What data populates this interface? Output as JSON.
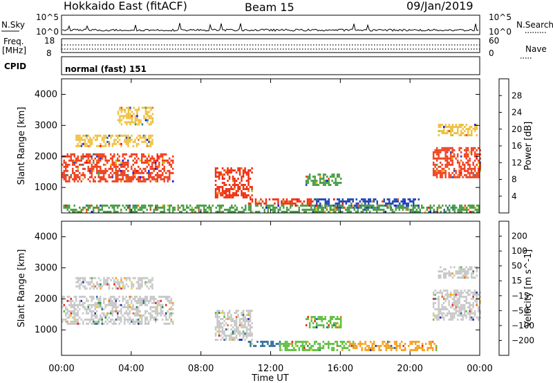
{
  "header": {
    "radar": "Hokkaido East (fitACF)",
    "beam": "Beam 15",
    "date": "09/Jan/2019"
  },
  "status_panels": {
    "nsky_label": "N.Sky",
    "nsky_ticks": [
      "10^5",
      "10^0"
    ],
    "nsearch_label": "N.Search",
    "nsearch_ticks": [
      "10^5",
      "10^0"
    ],
    "freq_label_1": "Freq.",
    "freq_label_2": "[MHz]",
    "freq_ticks": [
      "18",
      "8"
    ],
    "nave_label": "Nave",
    "nave_ticks": [
      "60",
      "0"
    ],
    "cpid_label": "CPID",
    "cpid_value": "normal (fast) 151"
  },
  "x_axis": {
    "label": "Time UT",
    "ticks": [
      "00:00",
      "04:00",
      "08:00",
      "12:00",
      "16:00",
      "20:00",
      "00:00"
    ]
  },
  "chart_data": [
    {
      "type": "heatmap",
      "quantity": "power",
      "ylabel": "Slant Range [km]",
      "y_ticks": [
        "1000",
        "2000",
        "3000",
        "4000"
      ],
      "ylim": [
        180,
        4500
      ],
      "xlim_hours": [
        0,
        24
      ],
      "colorbar": {
        "label": "Power [dB]",
        "ticks": [
          "4",
          "8",
          "12",
          "16",
          "20",
          "24",
          "28"
        ],
        "colors": [
          "#0a14ff",
          "#2547b8",
          "#2e7c7c",
          "#4a9f46",
          "#a9c92f",
          "#f0c020",
          "#f5a020",
          "#f07a10",
          "#f04a10",
          "#ff0000"
        ]
      },
      "regions": [
        {
          "t": [
            0,
            6.4
          ],
          "r": [
            1200,
            2100
          ],
          "value": "high",
          "color": "#f04020"
        },
        {
          "t": [
            0.8,
            5.2
          ],
          "r": [
            2350,
            2700
          ],
          "value": "medium",
          "color": "#f0c040"
        },
        {
          "t": [
            3.2,
            5.2
          ],
          "r": [
            3050,
            3600
          ],
          "value": "medium",
          "color": "#f0c040"
        },
        {
          "t": [
            8.8,
            10.9
          ],
          "r": [
            650,
            1650
          ],
          "value": "high",
          "color": "#f03010"
        },
        {
          "t": [
            10.7,
            14.5
          ],
          "r": [
            450,
            650
          ],
          "value": "high",
          "color": "#f03010"
        },
        {
          "t": [
            14.5,
            20.5
          ],
          "r": [
            350,
            650
          ],
          "value": "low",
          "color": "#2547b8"
        },
        {
          "t": [
            14.0,
            16.0
          ],
          "r": [
            1100,
            1450
          ],
          "value": "medium",
          "color": "#4a9f46"
        },
        {
          "t": [
            21.3,
            24
          ],
          "r": [
            1300,
            2300
          ],
          "value": "high",
          "color": "#f04020"
        },
        {
          "t": [
            21.6,
            23.8
          ],
          "r": [
            2650,
            3050
          ],
          "value": "medium",
          "color": "#f0c040"
        },
        {
          "t": [
            0,
            24
          ],
          "r": [
            200,
            450
          ],
          "value": "mixed",
          "color": "#4a9f46"
        }
      ]
    },
    {
      "type": "heatmap",
      "quantity": "velocity",
      "ylabel": "Slant Range [km]",
      "y_ticks": [
        "1000",
        "2000",
        "3000",
        "4000"
      ],
      "ylim": [
        180,
        4500
      ],
      "xlim_hours": [
        0,
        24
      ],
      "colorbar": {
        "label": "Velocity [m s^-1]",
        "ticks": [
          "200",
          "100",
          "50",
          "15",
          "−15",
          "−50",
          "−100",
          "−200"
        ],
        "colors": [
          "#1e2ea8",
          "#2e6e9e",
          "#2e8a50",
          "#5fc040",
          "#c8c8c8",
          "#f5d020",
          "#f5a020",
          "#f07010",
          "#f02020"
        ]
      },
      "regions": [
        {
          "t": [
            0,
            6.4
          ],
          "r": [
            1200,
            2100
          ],
          "value": "low",
          "color": "#c8c8c8"
        },
        {
          "t": [
            0.8,
            5.2
          ],
          "r": [
            2350,
            2700
          ],
          "value": "low",
          "color": "#c8c8c8"
        },
        {
          "t": [
            8.8,
            10.9
          ],
          "r": [
            650,
            1650
          ],
          "value": "low",
          "color": "#c8c8c8"
        },
        {
          "t": [
            10.7,
            12.5
          ],
          "r": [
            450,
            650
          ],
          "value": "positive",
          "color": "#2e6e9e"
        },
        {
          "t": [
            12.5,
            16.5
          ],
          "r": [
            350,
            650
          ],
          "value": "positive",
          "color": "#5fc040"
        },
        {
          "t": [
            16.5,
            21.5
          ],
          "r": [
            350,
            650
          ],
          "value": "negative",
          "color": "#f5a020"
        },
        {
          "t": [
            14.0,
            16.0
          ],
          "r": [
            1100,
            1450
          ],
          "value": "positive",
          "color": "#5fc040"
        },
        {
          "t": [
            21.3,
            24
          ],
          "r": [
            1300,
            2300
          ],
          "value": "low",
          "color": "#c8c8c8"
        },
        {
          "t": [
            21.6,
            23.8
          ],
          "r": [
            2650,
            3050
          ],
          "value": "low",
          "color": "#c8c8c8"
        }
      ]
    }
  ]
}
